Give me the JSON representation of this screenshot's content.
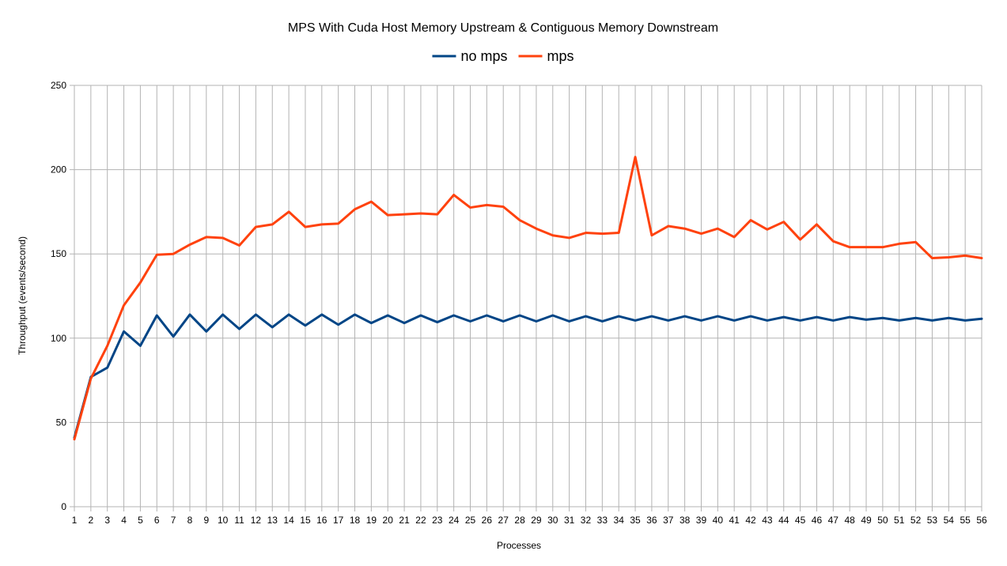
{
  "chart_data": {
    "type": "line",
    "title": "MPS With Cuda Host Memory Upstream & Contiguous Memory Downstream",
    "xlabel": "Processes",
    "ylabel": "Throughput (events/second)",
    "ylim": [
      0,
      250
    ],
    "yticks": [
      0,
      50,
      100,
      150,
      200,
      250
    ],
    "grid": true,
    "legend_position": "top",
    "x": [
      1,
      2,
      3,
      4,
      5,
      6,
      7,
      8,
      9,
      10,
      11,
      12,
      13,
      14,
      15,
      16,
      17,
      18,
      19,
      20,
      21,
      22,
      23,
      24,
      25,
      26,
      27,
      28,
      29,
      30,
      31,
      32,
      33,
      34,
      35,
      36,
      37,
      38,
      39,
      40,
      41,
      42,
      43,
      44,
      45,
      46,
      47,
      48,
      49,
      50,
      51,
      52,
      53,
      54,
      55,
      56
    ],
    "series": [
      {
        "name": "no mps",
        "color": "#004586",
        "values": [
          41,
          77,
          82.5,
          104,
          95.5,
          113.5,
          101,
          114,
          104,
          114,
          105.5,
          114,
          106.5,
          114,
          107.5,
          114,
          108,
          114,
          109,
          113.5,
          109,
          113.5,
          109.5,
          113.5,
          110,
          113.5,
          110,
          113.5,
          110,
          113.5,
          110,
          113,
          110,
          113,
          110.5,
          113,
          110.5,
          113,
          110.5,
          113,
          110.5,
          113,
          110.5,
          112.5,
          110.5,
          112.5,
          110.5,
          112.5,
          111,
          112,
          110.5,
          112,
          110.5,
          112,
          110.5,
          111.5
        ]
      },
      {
        "name": "mps",
        "color": "#ff420e",
        "values": [
          40,
          76,
          95.5,
          119.5,
          133,
          149.5,
          150,
          155.5,
          160,
          159.5,
          155,
          166,
          167.5,
          175,
          166,
          167.5,
          168,
          176.5,
          181,
          173,
          173.5,
          174,
          173.5,
          185,
          177.5,
          179,
          178,
          170,
          165,
          161,
          159.5,
          162.5,
          162,
          162.5,
          207.5,
          161,
          166.5,
          165,
          162,
          165,
          160,
          170,
          164.5,
          169,
          158.5,
          167.5,
          157.5,
          154,
          154,
          154,
          156,
          157,
          147.5,
          148,
          149,
          147.5
        ]
      }
    ]
  }
}
